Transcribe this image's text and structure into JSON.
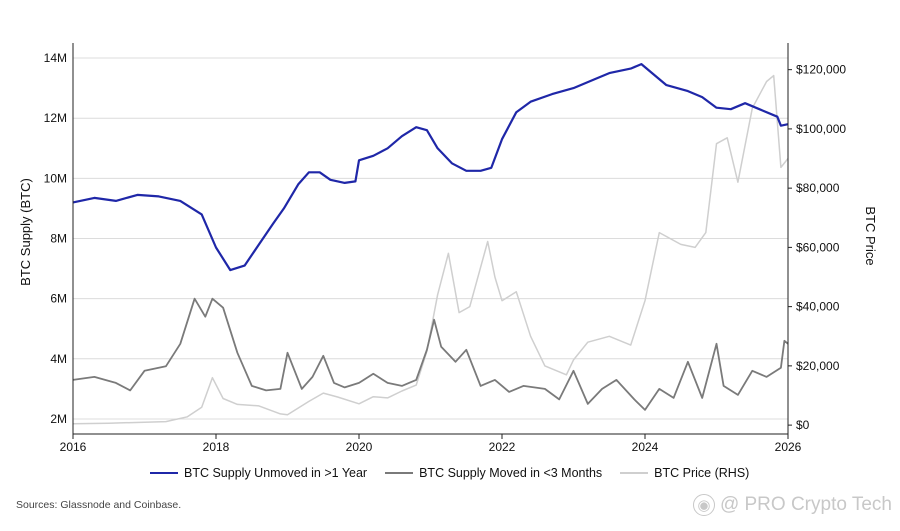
{
  "chart_data": {
    "type": "line",
    "title": "",
    "xlabel": "",
    "ylabel_left": "BTC Supply (BTC)",
    "ylabel_right": "BTC Price",
    "x_range": [
      2016,
      2026
    ],
    "ylim_left": [
      1500000,
      14500000
    ],
    "ylim_right": [
      -3000,
      129000
    ],
    "x_ticks": [
      2016,
      2018,
      2020,
      2022,
      2024,
      2026
    ],
    "x_tick_labels": [
      "2016",
      "2018",
      "2020",
      "2022",
      "2024",
      "2026"
    ],
    "y_left_ticks": [
      2000000,
      4000000,
      6000000,
      8000000,
      10000000,
      12000000,
      14000000
    ],
    "y_left_tick_labels": [
      "2M",
      "4M",
      "6M",
      "8M",
      "10M",
      "12M",
      "14M"
    ],
    "y_right_ticks": [
      0,
      20000,
      40000,
      60000,
      80000,
      100000,
      120000
    ],
    "y_right_tick_labels": [
      "$0",
      "$20,000",
      "$40,000",
      "$60,000",
      "$80,000",
      "$100,000",
      "$120,000"
    ],
    "grid": true,
    "legend_position": "bottom",
    "series": [
      {
        "name": "BTC Supply Unmoved in >1 Year",
        "axis": "left",
        "color": "#1f27a8",
        "x": [
          2016.0,
          2016.3,
          2016.6,
          2016.9,
          2017.2,
          2017.5,
          2017.8,
          2018.0,
          2018.2,
          2018.4,
          2018.6,
          2018.8,
          2018.95,
          2019.15,
          2019.3,
          2019.45,
          2019.6,
          2019.8,
          2019.95,
          2020.0,
          2020.2,
          2020.4,
          2020.6,
          2020.8,
          2020.95,
          2021.1,
          2021.3,
          2021.5,
          2021.7,
          2021.85,
          2022.0,
          2022.2,
          2022.4,
          2022.7,
          2023.0,
          2023.3,
          2023.5,
          2023.8,
          2023.95,
          2024.1,
          2024.3,
          2024.6,
          2024.8,
          2025.0,
          2025.2,
          2025.4,
          2025.6,
          2025.85,
          2025.9,
          2026.0
        ],
        "values": [
          9200000,
          9350000,
          9250000,
          9450000,
          9400000,
          9250000,
          8800000,
          7700000,
          6950000,
          7100000,
          7800000,
          8500000,
          9000000,
          9800000,
          10200000,
          10200000,
          9950000,
          9850000,
          9900000,
          10600000,
          10750000,
          11000000,
          11400000,
          11700000,
          11600000,
          11000000,
          10500000,
          10250000,
          10250000,
          10350000,
          11300000,
          12200000,
          12550000,
          12800000,
          13000000,
          13300000,
          13500000,
          13650000,
          13800000,
          13500000,
          13100000,
          12900000,
          12700000,
          12350000,
          12300000,
          12500000,
          12300000,
          12050000,
          11750000,
          11800000
        ]
      },
      {
        "name": "BTC Supply Moved in <3 Months",
        "axis": "left",
        "color": "#7a7a7a",
        "x": [
          2016.0,
          2016.3,
          2016.6,
          2016.8,
          2017.0,
          2017.3,
          2017.5,
          2017.7,
          2017.85,
          2017.95,
          2018.1,
          2018.3,
          2018.5,
          2018.7,
          2018.9,
          2019.0,
          2019.2,
          2019.35,
          2019.5,
          2019.65,
          2019.8,
          2020.0,
          2020.2,
          2020.4,
          2020.6,
          2020.8,
          2020.95,
          2021.05,
          2021.15,
          2021.35,
          2021.5,
          2021.7,
          2021.9,
          2022.1,
          2022.3,
          2022.6,
          2022.8,
          2023.0,
          2023.2,
          2023.4,
          2023.6,
          2023.85,
          2024.0,
          2024.2,
          2024.4,
          2024.6,
          2024.8,
          2025.0,
          2025.1,
          2025.3,
          2025.5,
          2025.7,
          2025.9,
          2025.95,
          2026.0
        ],
        "values": [
          3300000,
          3400000,
          3200000,
          2950000,
          3600000,
          3750000,
          4500000,
          6000000,
          5400000,
          6000000,
          5700000,
          4200000,
          3100000,
          2950000,
          3000000,
          4200000,
          3000000,
          3400000,
          4100000,
          3200000,
          3050000,
          3200000,
          3500000,
          3200000,
          3100000,
          3300000,
          4300000,
          5300000,
          4400000,
          3900000,
          4300000,
          3100000,
          3300000,
          2900000,
          3100000,
          3000000,
          2650000,
          3600000,
          2500000,
          3000000,
          3300000,
          2650000,
          2300000,
          3000000,
          2700000,
          3900000,
          2700000,
          4500000,
          3100000,
          2800000,
          3600000,
          3400000,
          3700000,
          4600000,
          4500000
        ]
      },
      {
        "name": "BTC Price (RHS)",
        "axis": "right",
        "color": "#cfcfcf",
        "x": [
          2016.0,
          2016.5,
          2017.0,
          2017.3,
          2017.6,
          2017.8,
          2017.95,
          2018.1,
          2018.3,
          2018.6,
          2018.9,
          2019.0,
          2019.3,
          2019.5,
          2019.7,
          2020.0,
          2020.2,
          2020.4,
          2020.6,
          2020.8,
          2020.95,
          2021.1,
          2021.25,
          2021.4,
          2021.55,
          2021.8,
          2021.9,
          2022.0,
          2022.2,
          2022.4,
          2022.6,
          2022.9,
          2023.0,
          2023.2,
          2023.5,
          2023.8,
          2024.0,
          2024.2,
          2024.5,
          2024.7,
          2024.85,
          2025.0,
          2025.15,
          2025.3,
          2025.5,
          2025.7,
          2025.8,
          2025.9,
          2026.0
        ],
        "values": [
          430,
          650,
          1000,
          1200,
          2800,
          6000,
          16000,
          9000,
          7000,
          6500,
          3800,
          3500,
          8000,
          10800,
          9500,
          7200,
          9600,
          9200,
          11500,
          13500,
          25000,
          44000,
          58000,
          38000,
          40000,
          62000,
          50000,
          42000,
          45000,
          30000,
          20000,
          17000,
          22000,
          28000,
          30000,
          27000,
          42000,
          65000,
          61000,
          60000,
          65000,
          95000,
          97000,
          82000,
          107000,
          116000,
          118000,
          87000,
          90000
        ]
      }
    ]
  },
  "legend": {
    "items": [
      {
        "label": "BTC Supply Unmoved in >1 Year",
        "color": "#1f27a8"
      },
      {
        "label": "BTC Supply Moved in <3 Months",
        "color": "#7a7a7a"
      },
      {
        "label": "BTC Price (RHS)",
        "color": "#cfcfcf"
      }
    ]
  },
  "source_note": "Sources: Glassnode and Coinbase.",
  "watermark": {
    "icon": "camera-icon",
    "text": "@ PRO Crypto Tech"
  }
}
